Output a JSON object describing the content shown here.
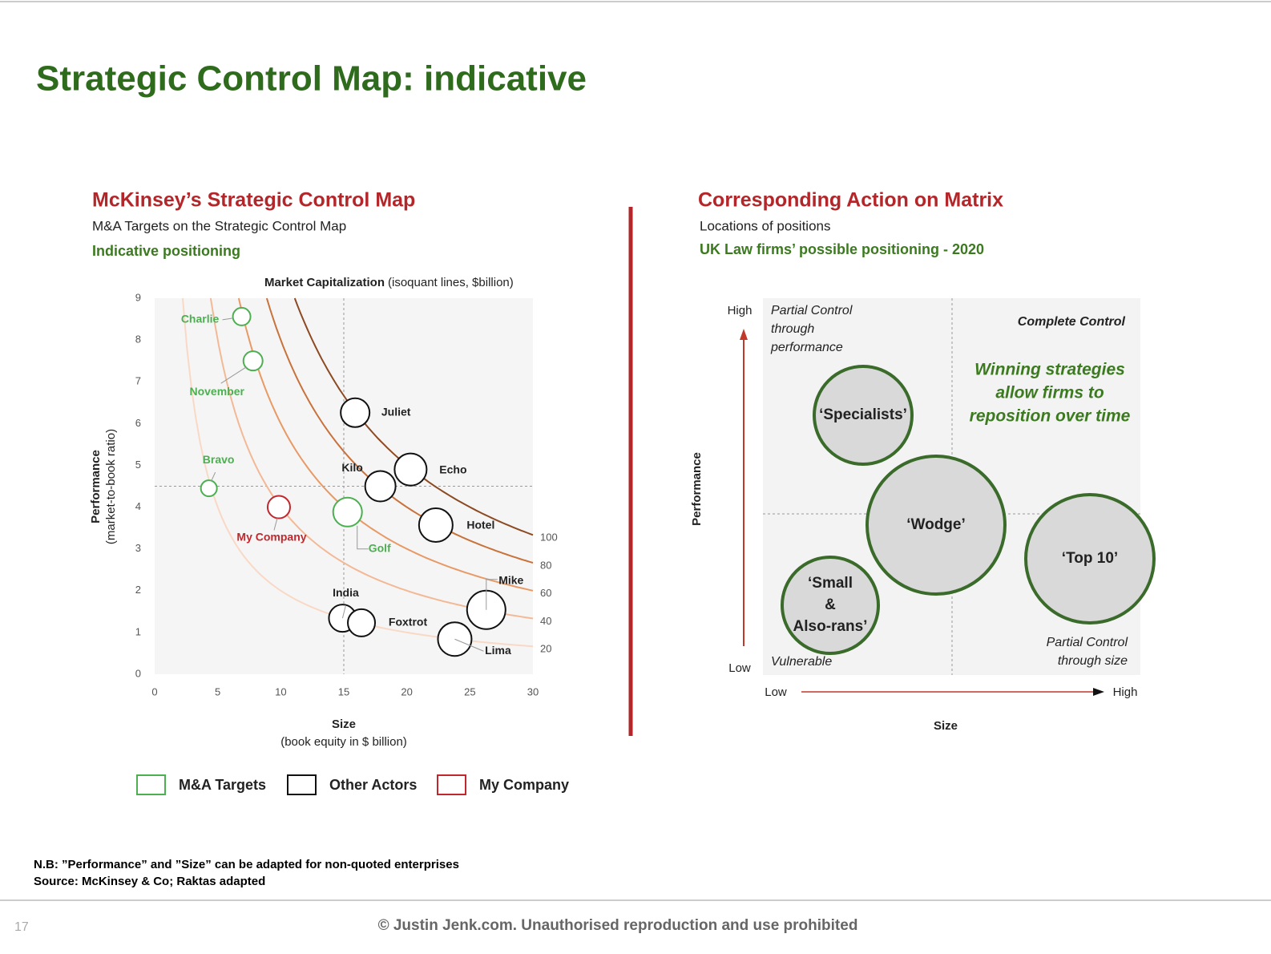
{
  "slide": {
    "title": "Strategic Control Map: indicative",
    "notes": [
      "N.B: ”Performance” and ”Size” can be adapted for non-quoted enterprises",
      "Source: McKinsey & Co; Raktas adapted"
    ],
    "page_number": "17",
    "footer": "© Justin Jenk.com. Unauthorised reproduction and use prohibited"
  },
  "chart_data": [
    {
      "type": "scatter",
      "heading": "McKinsey’s Strategic Control Map",
      "subtitle": "M&A Targets on the Strategic Control Map",
      "note": "Indicative positioning",
      "top_axis_title": "Market Capitalization",
      "top_axis_subtitle": "(isoquant lines, $billion)",
      "ylabel": "Performance",
      "ylabel_sub": "(market-to-book ratio)",
      "xlabel": "Size",
      "xlabel_sub": "(book equity in $ billion)",
      "xlim": [
        0,
        30
      ],
      "ylim": [
        0,
        9
      ],
      "xticks": [
        0,
        5,
        10,
        15,
        20,
        25,
        30
      ],
      "yticks": [
        0,
        1,
        2,
        3,
        4,
        5,
        6,
        7,
        8,
        9
      ],
      "reference_lines": {
        "x": 15,
        "y": 4.5
      },
      "isoquants": {
        "values": [
          20,
          40,
          60,
          80,
          100
        ],
        "colors": [
          "#f9d9c6",
          "#f3b996",
          "#e89a66",
          "#c8723c",
          "#8c4a22"
        ]
      },
      "series": [
        {
          "name": "M&A Targets",
          "color": "#4caf50",
          "labels": [
            "Charlie",
            "November",
            "Bravo",
            "Golf"
          ],
          "x": [
            6.9,
            7.8,
            4.3,
            15.3
          ],
          "values": [
            8.56,
            7.5,
            4.45,
            3.88
          ],
          "sizes": [
            11,
            12,
            10,
            18
          ]
        },
        {
          "name": "Other Actors",
          "color": "#111111",
          "labels": [
            "Juliet",
            "Kilo",
            "Echo",
            "Hotel",
            "India",
            "Foxtrot",
            "Mike",
            "Lima"
          ],
          "x": [
            15.9,
            17.9,
            20.3,
            22.3,
            14.9,
            16.4,
            26.3,
            23.8
          ],
          "values": [
            6.26,
            4.5,
            4.9,
            3.57,
            1.34,
            1.23,
            1.54,
            0.84
          ],
          "sizes": [
            18,
            19,
            20,
            21,
            17,
            17,
            24,
            21
          ]
        },
        {
          "name": "My Company",
          "color": "#c0282d",
          "labels": [
            "My Company"
          ],
          "x": [
            9.85
          ],
          "values": [
            4.0
          ],
          "sizes": [
            14
          ]
        }
      ]
    },
    {
      "type": "matrix",
      "heading": "Corresponding Action on Matrix",
      "subtitle": "Locations of positions",
      "note": "UK Law firms’ possible positioning - 2020",
      "ylabel": "Performance",
      "xlabel": "Size",
      "y_low": "Low",
      "y_high": "High",
      "x_low": "Low",
      "x_high": "High",
      "quadrants": [
        [
          "Partial Control",
          "through",
          "performance"
        ],
        [
          "Complete Control"
        ],
        [
          "Vulnerable"
        ],
        [
          "Partial Control",
          "through size"
        ]
      ],
      "callout": [
        "Winning strategies",
        "allow firms to",
        "reposition over time"
      ],
      "bubbles": [
        [
          "‘Specialists’"
        ],
        [
          "‘Wodge’"
        ],
        [
          "‘Top 10’"
        ],
        [
          "‘Small",
          "&",
          "Also-rans’"
        ]
      ]
    }
  ]
}
